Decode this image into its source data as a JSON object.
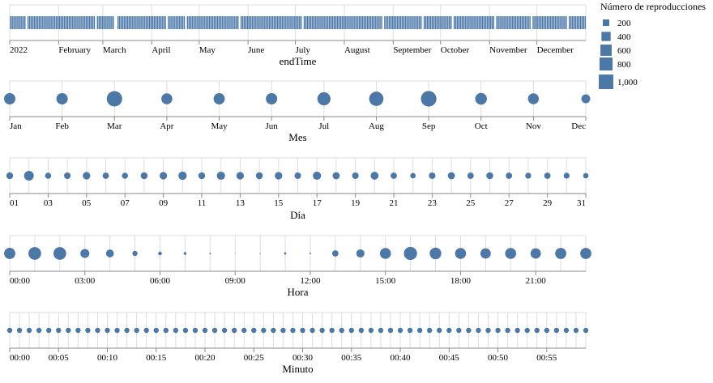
{
  "colors": {
    "mark": "#4c78a8",
    "axis": "#888888",
    "grid": "#dddddd",
    "frame": "#dddddd"
  },
  "legend": {
    "title": "Número de reproducciones",
    "entries": [
      {
        "label": "200",
        "value": 200
      },
      {
        "label": "400",
        "value": 400
      },
      {
        "label": "600",
        "value": 600
      },
      {
        "label": "800",
        "value": 800
      },
      {
        "label": "1,000",
        "value": 1000
      }
    ],
    "placement": "top-right"
  },
  "chart_data": [
    {
      "type": "strip",
      "xlabel": "endTime",
      "x_domain": [
        "2022-01-01",
        "2022-12-31"
      ],
      "tick_labels": [
        "2022",
        "February",
        "March",
        "April",
        "May",
        "June",
        "July",
        "August",
        "September",
        "October",
        "November",
        "December"
      ],
      "tick_dates": [
        "2022-01-01",
        "2022-02-01",
        "2022-03-01",
        "2022-04-01",
        "2022-05-01",
        "2022-06-01",
        "2022-07-01",
        "2022-08-01",
        "2022-09-01",
        "2022-10-01",
        "2022-11-01",
        "2022-12-01"
      ],
      "gap_dates": [
        "2022-01-11",
        "2022-02-24",
        "2022-03-08",
        "2022-03-09",
        "2022-04-10",
        "2022-04-22",
        "2022-05-26",
        "2022-07-05",
        "2022-08-25",
        "2022-09-19",
        "2022-10-08",
        "2022-11-04",
        "2022-11-27",
        "2022-12-20"
      ],
      "grid": true
    },
    {
      "type": "scatter",
      "xlabel": "Mes",
      "categories": [
        "Jan",
        "Feb",
        "Mar",
        "Apr",
        "May",
        "Jun",
        "Jul",
        "Aug",
        "Sep",
        "Oct",
        "Nov",
        "Dec"
      ],
      "values": [
        480,
        480,
        880,
        450,
        470,
        480,
        640,
        760,
        900,
        510,
        440,
        290
      ],
      "grid": true
    },
    {
      "type": "scatter",
      "xlabel": "Día",
      "categories": [
        "01",
        "02",
        "03",
        "04",
        "05",
        "06",
        "07",
        "08",
        "09",
        "10",
        "11",
        "12",
        "13",
        "14",
        "15",
        "16",
        "17",
        "18",
        "19",
        "20",
        "21",
        "22",
        "23",
        "24",
        "25",
        "26",
        "27",
        "28",
        "29",
        "30",
        "31"
      ],
      "tick_labels": [
        "01",
        "03",
        "05",
        "07",
        "09",
        "11",
        "13",
        "15",
        "17",
        "19",
        "21",
        "23",
        "25",
        "27",
        "29",
        "31"
      ],
      "values": [
        170,
        350,
        140,
        160,
        210,
        150,
        140,
        180,
        210,
        260,
        170,
        250,
        210,
        180,
        210,
        160,
        250,
        190,
        160,
        230,
        150,
        110,
        160,
        190,
        150,
        180,
        150,
        130,
        150,
        130,
        110
      ],
      "grid": true
    },
    {
      "type": "scatter",
      "xlabel": "Hora",
      "categories": [
        "0",
        "1",
        "2",
        "3",
        "4",
        "5",
        "6",
        "7",
        "8",
        "9",
        "10",
        "11",
        "12",
        "13",
        "14",
        "15",
        "16",
        "17",
        "18",
        "19",
        "20",
        "21",
        "22",
        "23"
      ],
      "tick_labels": [
        "00:00",
        "03:00",
        "06:00",
        "09:00",
        "12:00",
        "15:00",
        "18:00",
        "21:00"
      ],
      "tick_hours": [
        0,
        3,
        6,
        9,
        12,
        15,
        18,
        21
      ],
      "values": [
        470,
        600,
        600,
        300,
        230,
        100,
        50,
        30,
        10,
        2,
        4,
        20,
        10,
        150,
        250,
        450,
        640,
        500,
        450,
        400,
        450,
        400,
        460,
        460
      ],
      "grid": true
    },
    {
      "type": "scatter",
      "xlabel": "Minuto",
      "categories_count": 60,
      "tick_labels": [
        "00:00",
        "00:05",
        "00:10",
        "00:15",
        "00:20",
        "00:25",
        "00:30",
        "00:35",
        "00:40",
        "00:45",
        "00:50",
        "00:55"
      ],
      "tick_minutes": [
        0,
        5,
        10,
        15,
        20,
        25,
        30,
        35,
        40,
        45,
        50,
        55
      ],
      "value_each": 100,
      "grid": true
    }
  ]
}
